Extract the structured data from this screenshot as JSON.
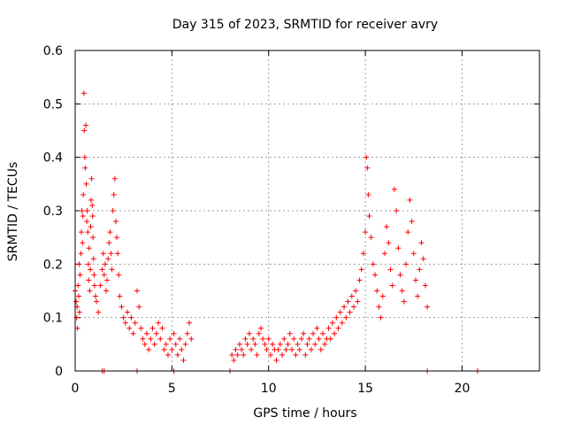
{
  "chart_data": {
    "type": "scatter",
    "title": "Day 315 of 2023, SRMTID for receiver avry",
    "xlabel": "GPS time / hours",
    "ylabel": "SRMTID / TECUs",
    "xlim": [
      0,
      24
    ],
    "ylim": [
      0,
      0.6
    ],
    "xticks": [
      0,
      5,
      10,
      15,
      20
    ],
    "xtick_labels": [
      "0",
      "5",
      "10",
      "15",
      "20"
    ],
    "yticks": [
      0,
      0.1,
      0.2,
      0.3,
      0.4,
      0.5,
      0.6
    ],
    "ytick_labels": [
      "0",
      "0.1",
      "0.2",
      "0.3",
      "0.4",
      "0.5",
      "0.6"
    ],
    "grid": true,
    "marker": "+",
    "color": "#ff0000",
    "series": [
      {
        "name": "SRMTID",
        "points": [
          [
            0.0,
            0.15
          ],
          [
            0.05,
            0.13
          ],
          [
            0.08,
            0.1
          ],
          [
            0.1,
            0.12
          ],
          [
            0.12,
            0.08
          ],
          [
            0.15,
            0.16
          ],
          [
            0.18,
            0.14
          ],
          [
            0.2,
            0.2
          ],
          [
            0.22,
            0.11
          ],
          [
            0.25,
            0.18
          ],
          [
            0.3,
            0.22
          ],
          [
            0.32,
            0.26
          ],
          [
            0.35,
            0.3
          ],
          [
            0.38,
            0.24
          ],
          [
            0.4,
            0.29
          ],
          [
            0.42,
            0.33
          ],
          [
            0.45,
            0.52
          ],
          [
            0.47,
            0.45
          ],
          [
            0.5,
            0.4
          ],
          [
            0.52,
            0.38
          ],
          [
            0.55,
            0.46
          ],
          [
            0.57,
            0.35
          ],
          [
            0.6,
            0.28
          ],
          [
            0.62,
            0.3
          ],
          [
            0.65,
            0.26
          ],
          [
            0.68,
            0.2
          ],
          [
            0.7,
            0.17
          ],
          [
            0.72,
            0.23
          ],
          [
            0.75,
            0.15
          ],
          [
            0.78,
            0.19
          ],
          [
            0.8,
            0.27
          ],
          [
            0.82,
            0.32
          ],
          [
            0.85,
            0.36
          ],
          [
            0.88,
            0.31
          ],
          [
            0.9,
            0.29
          ],
          [
            0.92,
            0.25
          ],
          [
            0.95,
            0.21
          ],
          [
            0.98,
            0.18
          ],
          [
            1.0,
            0.16
          ],
          [
            1.05,
            0.14
          ],
          [
            1.1,
            0.13
          ],
          [
            1.2,
            0.11
          ],
          [
            1.3,
            0.16
          ],
          [
            1.4,
            0.19
          ],
          [
            1.45,
            0.22
          ],
          [
            1.5,
            0.18
          ],
          [
            1.55,
            0.2
          ],
          [
            1.6,
            0.15
          ],
          [
            1.65,
            0.17
          ],
          [
            1.7,
            0.21
          ],
          [
            1.75,
            0.24
          ],
          [
            1.8,
            0.26
          ],
          [
            1.85,
            0.22
          ],
          [
            1.9,
            0.19
          ],
          [
            1.95,
            0.3
          ],
          [
            2.0,
            0.33
          ],
          [
            2.05,
            0.36
          ],
          [
            2.1,
            0.28
          ],
          [
            2.15,
            0.25
          ],
          [
            2.2,
            0.22
          ],
          [
            2.25,
            0.18
          ],
          [
            2.3,
            0.14
          ],
          [
            2.4,
            0.12
          ],
          [
            2.5,
            0.1
          ],
          [
            2.6,
            0.09
          ],
          [
            2.7,
            0.11
          ],
          [
            2.8,
            0.08
          ],
          [
            2.9,
            0.1
          ],
          [
            3.0,
            0.07
          ],
          [
            3.1,
            0.09
          ],
          [
            3.2,
            0.15
          ],
          [
            3.3,
            0.12
          ],
          [
            3.4,
            0.08
          ],
          [
            3.5,
            0.06
          ],
          [
            3.6,
            0.05
          ],
          [
            3.7,
            0.07
          ],
          [
            3.8,
            0.04
          ],
          [
            3.9,
            0.06
          ],
          [
            4.0,
            0.08
          ],
          [
            4.1,
            0.05
          ],
          [
            4.2,
            0.07
          ],
          [
            4.3,
            0.09
          ],
          [
            4.4,
            0.06
          ],
          [
            4.5,
            0.08
          ],
          [
            4.6,
            0.04
          ],
          [
            4.7,
            0.05
          ],
          [
            4.8,
            0.03
          ],
          [
            4.9,
            0.06
          ],
          [
            5.0,
            0.04
          ],
          [
            5.1,
            0.07
          ],
          [
            5.2,
            0.05
          ],
          [
            5.3,
            0.03
          ],
          [
            5.4,
            0.06
          ],
          [
            5.5,
            0.04
          ],
          [
            5.6,
            0.02
          ],
          [
            5.7,
            0.05
          ],
          [
            5.8,
            0.07
          ],
          [
            5.9,
            0.09
          ],
          [
            6.0,
            0.06
          ],
          [
            8.1,
            0.03
          ],
          [
            8.2,
            0.02
          ],
          [
            8.3,
            0.04
          ],
          [
            8.4,
            0.03
          ],
          [
            8.5,
            0.05
          ],
          [
            8.6,
            0.04
          ],
          [
            8.7,
            0.03
          ],
          [
            8.8,
            0.06
          ],
          [
            8.9,
            0.05
          ],
          [
            9.0,
            0.07
          ],
          [
            9.1,
            0.04
          ],
          [
            9.2,
            0.06
          ],
          [
            9.3,
            0.05
          ],
          [
            9.4,
            0.03
          ],
          [
            9.5,
            0.07
          ],
          [
            9.6,
            0.08
          ],
          [
            9.7,
            0.06
          ],
          [
            9.8,
            0.05
          ],
          [
            9.9,
            0.04
          ],
          [
            10.0,
            0.06
          ],
          [
            10.1,
            0.03
          ],
          [
            10.2,
            0.05
          ],
          [
            10.3,
            0.04
          ],
          [
            10.4,
            0.02
          ],
          [
            10.5,
            0.04
          ],
          [
            10.6,
            0.05
          ],
          [
            10.7,
            0.03
          ],
          [
            10.8,
            0.06
          ],
          [
            10.9,
            0.04
          ],
          [
            11.0,
            0.05
          ],
          [
            11.1,
            0.07
          ],
          [
            11.2,
            0.04
          ],
          [
            11.3,
            0.06
          ],
          [
            11.4,
            0.03
          ],
          [
            11.5,
            0.05
          ],
          [
            11.6,
            0.04
          ],
          [
            11.7,
            0.06
          ],
          [
            11.8,
            0.07
          ],
          [
            11.9,
            0.03
          ],
          [
            12.0,
            0.05
          ],
          [
            12.1,
            0.06
          ],
          [
            12.2,
            0.04
          ],
          [
            12.3,
            0.07
          ],
          [
            12.4,
            0.05
          ],
          [
            12.5,
            0.08
          ],
          [
            12.6,
            0.06
          ],
          [
            12.7,
            0.04
          ],
          [
            12.8,
            0.07
          ],
          [
            12.9,
            0.05
          ],
          [
            13.0,
            0.06
          ],
          [
            13.1,
            0.08
          ],
          [
            13.2,
            0.06
          ],
          [
            13.3,
            0.09
          ],
          [
            13.4,
            0.07
          ],
          [
            13.5,
            0.1
          ],
          [
            13.6,
            0.08
          ],
          [
            13.7,
            0.11
          ],
          [
            13.8,
            0.09
          ],
          [
            13.9,
            0.12
          ],
          [
            14.0,
            0.1
          ],
          [
            14.1,
            0.13
          ],
          [
            14.2,
            0.11
          ],
          [
            14.3,
            0.14
          ],
          [
            14.4,
            0.12
          ],
          [
            14.5,
            0.15
          ],
          [
            14.6,
            0.13
          ],
          [
            14.7,
            0.17
          ],
          [
            14.8,
            0.19
          ],
          [
            14.9,
            0.22
          ],
          [
            15.0,
            0.26
          ],
          [
            15.05,
            0.4
          ],
          [
            15.1,
            0.38
          ],
          [
            15.15,
            0.33
          ],
          [
            15.2,
            0.29
          ],
          [
            15.3,
            0.25
          ],
          [
            15.4,
            0.2
          ],
          [
            15.5,
            0.18
          ],
          [
            15.6,
            0.15
          ],
          [
            15.7,
            0.12
          ],
          [
            15.8,
            0.1
          ],
          [
            15.9,
            0.14
          ],
          [
            16.0,
            0.22
          ],
          [
            16.1,
            0.27
          ],
          [
            16.2,
            0.24
          ],
          [
            16.3,
            0.19
          ],
          [
            16.4,
            0.16
          ],
          [
            16.5,
            0.34
          ],
          [
            16.6,
            0.3
          ],
          [
            16.7,
            0.23
          ],
          [
            16.8,
            0.18
          ],
          [
            16.9,
            0.15
          ],
          [
            17.0,
            0.13
          ],
          [
            17.1,
            0.2
          ],
          [
            17.2,
            0.26
          ],
          [
            17.3,
            0.32
          ],
          [
            17.4,
            0.28
          ],
          [
            17.5,
            0.22
          ],
          [
            17.6,
            0.17
          ],
          [
            17.7,
            0.14
          ],
          [
            17.8,
            0.19
          ],
          [
            17.9,
            0.24
          ],
          [
            18.0,
            0.21
          ],
          [
            18.1,
            0.16
          ],
          [
            18.2,
            0.12
          ]
        ]
      }
    ],
    "zero_points_x": [
      1.4,
      1.5,
      3.2,
      5.1,
      8.0,
      18.2,
      20.8
    ]
  }
}
